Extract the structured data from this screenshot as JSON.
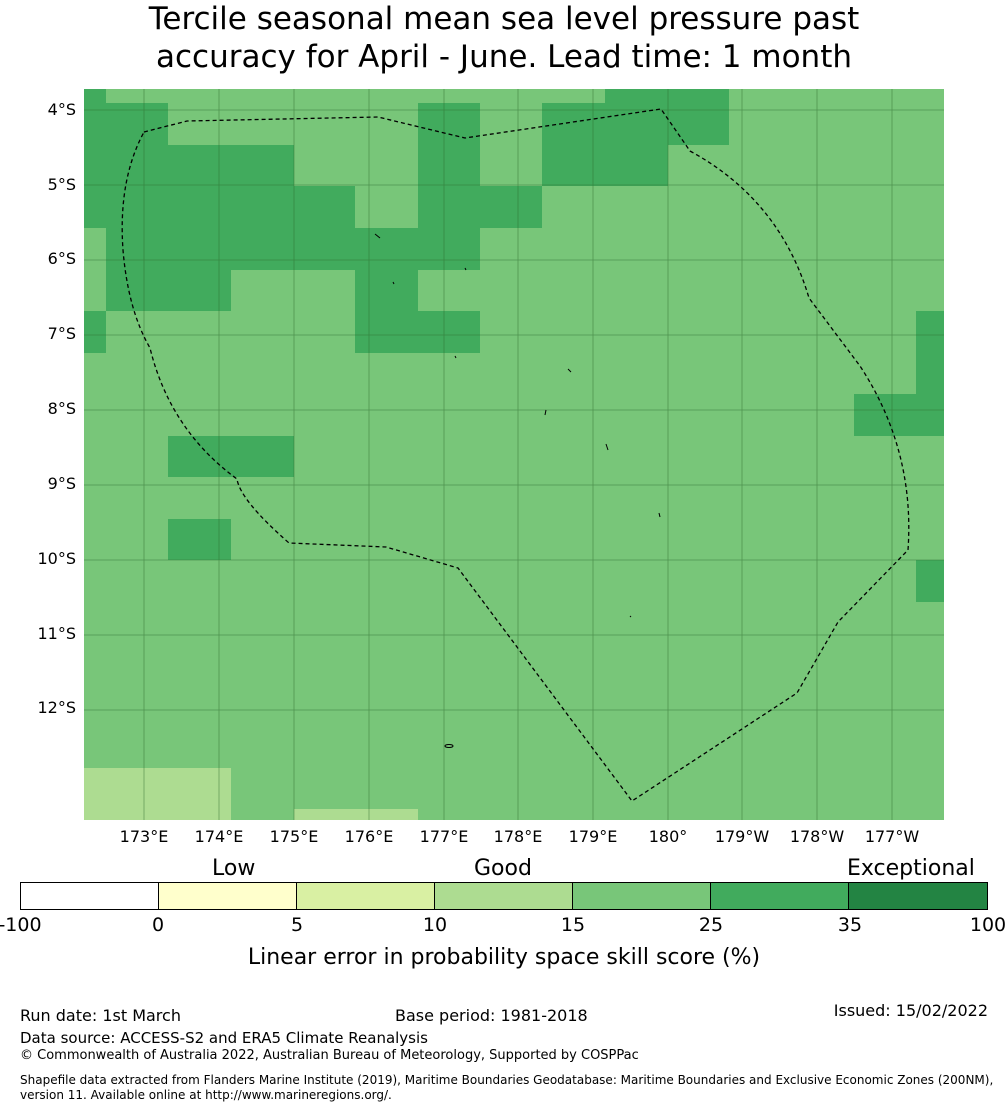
{
  "title": {
    "line1": "Tercile seasonal mean sea level pressure past",
    "line2": "accuracy for April - June. Lead time: 1 month"
  },
  "map": {
    "lat_labels": [
      "4°S",
      "5°S",
      "6°S",
      "7°S",
      "8°S",
      "9°S",
      "10°S",
      "11°S",
      "12°S"
    ],
    "lon_labels": [
      "173°E",
      "174°E",
      "175°E",
      "176°E",
      "177°E",
      "178°E",
      "179°E",
      "180°",
      "179°W",
      "178°W",
      "177°W"
    ],
    "colors": {
      "c10": "#addc91",
      "c15": "#78c679",
      "c25": "#41ab5d",
      "boundary": "#000000",
      "grid": "#2e6b2e"
    }
  },
  "colorbar": {
    "categories": [
      "Low",
      "Good",
      "Exceptional"
    ],
    "ticks": [
      "-100",
      "0",
      "5",
      "10",
      "15",
      "25",
      "35",
      "100"
    ],
    "colors": [
      "#ffffff",
      "#ffffcc",
      "#d9f0a3",
      "#addc91",
      "#78c679",
      "#41ab5d",
      "#238443"
    ],
    "label": "Linear error in probability space skill score (%)"
  },
  "footer": {
    "run_date": "Run date: 1st March",
    "base_period": "Base period: 1981-2018",
    "issued": "Issued: 15/02/2022",
    "data_source": "Data source: ACCESS-S2 and ERA5 Climate Reanalysis",
    "copyright": "© Commonwealth of Australia 2022, Australian Bureau of Meteorology, Supported by COSPPac",
    "shapefile_line1": "Shapefile data extracted from Flanders Marine Institute (2019), Maritime Boundaries Geodatabase: Maritime Boundaries and Exclusive Economic Zones (200NM),",
    "shapefile_line2": "version 11. Available online at http://www.marineregions.org/."
  }
}
